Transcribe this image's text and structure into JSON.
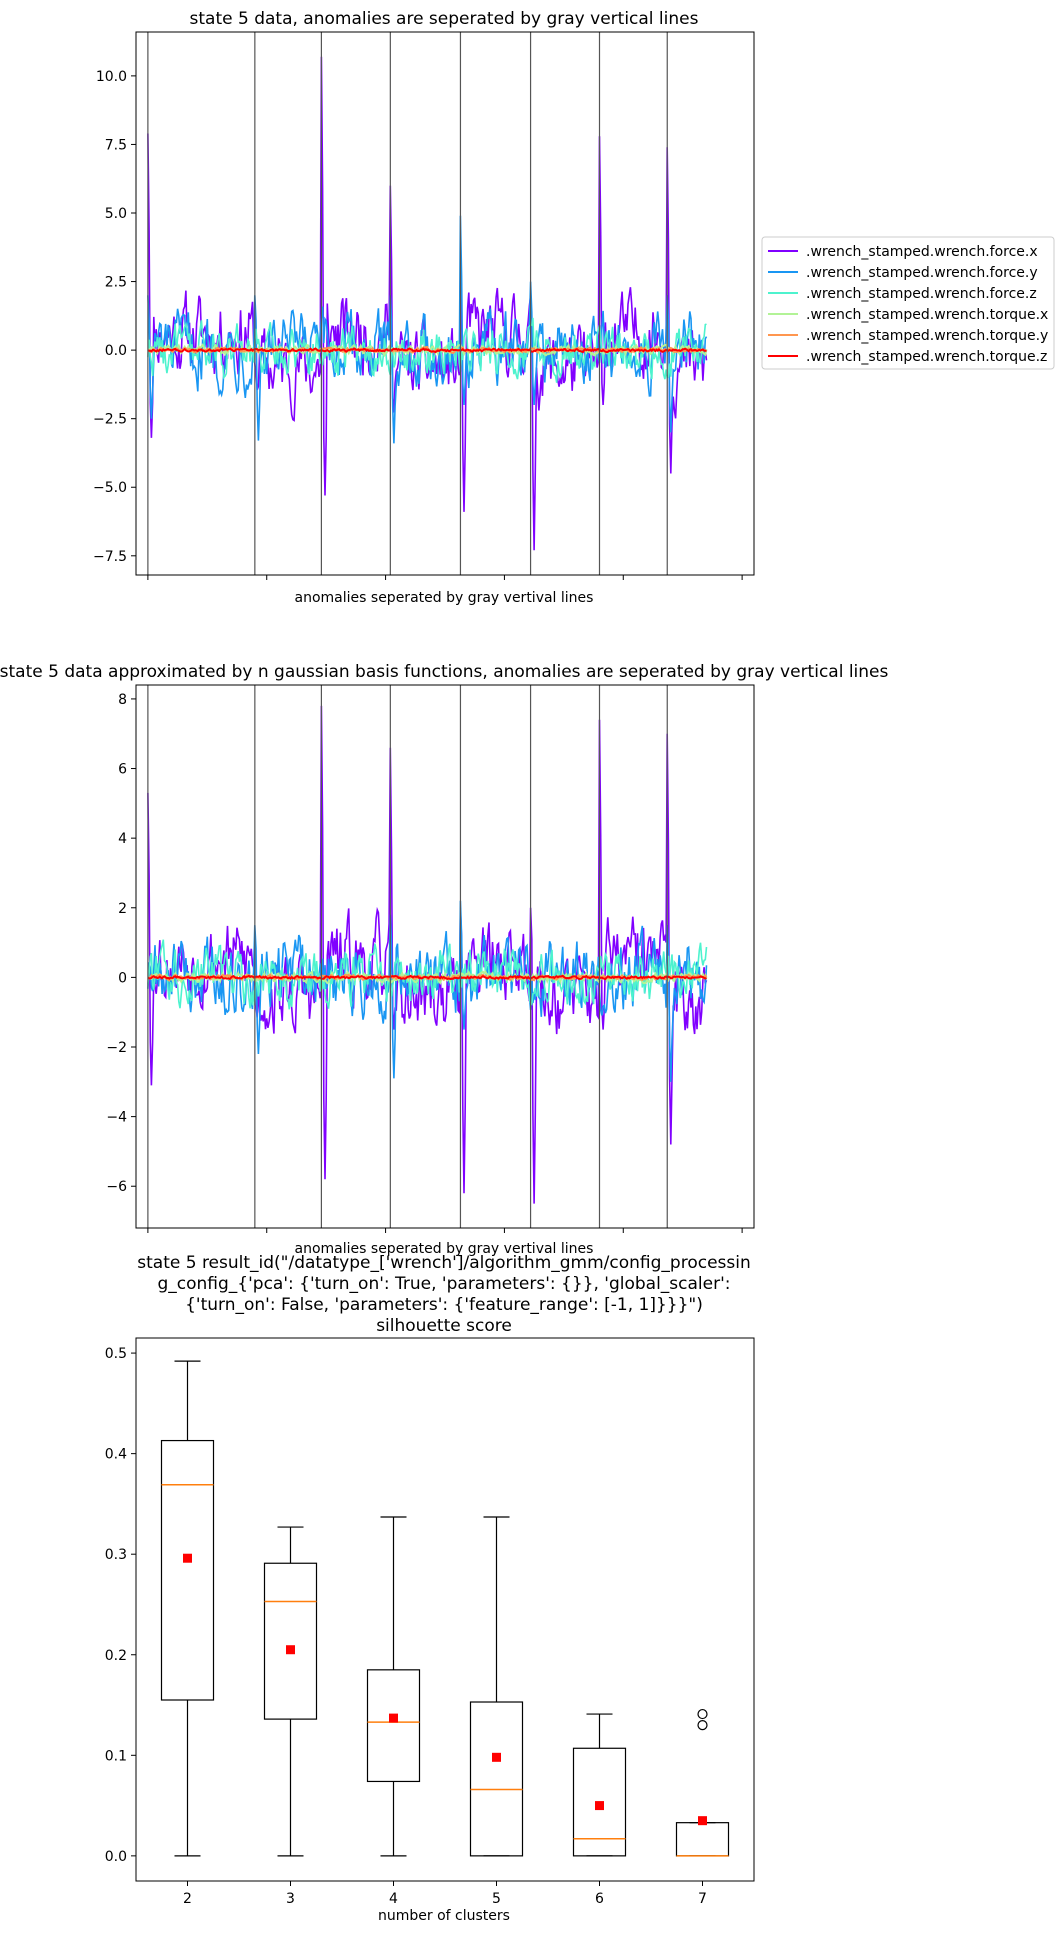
{
  "chart_data": [
    {
      "type": "line",
      "title": "state 5 data, anomalies are seperated by gray vertical lines",
      "xlabel": "anomalies seperated by gray vertival lines",
      "ylabel": "",
      "ylim": [
        -8.2,
        11.6
      ],
      "yticks": [
        "10.0",
        "7.5",
        "5.0",
        "2.5",
        "0.0",
        "−2.5",
        "−5.0",
        "−7.5"
      ],
      "ytick_values": [
        10.0,
        7.5,
        5.0,
        2.5,
        0.0,
        -2.5,
        -5.0,
        -7.5
      ],
      "x_range": [
        -10,
        510
      ],
      "xticks": [
        0,
        100,
        200,
        300,
        400,
        500
      ],
      "separators": [
        0,
        90,
        146,
        204,
        263,
        322,
        380,
        437
      ],
      "legend_position": "outside-right",
      "series": [
        {
          "name": ".wrench_stamped.wrench.force.x",
          "color": "#8000ff",
          "noise": 1.1,
          "offset": 0.6,
          "spikes": [
            {
              "pos": 0,
              "val": 7.9,
              "min": -3.2
            },
            {
              "pos": 146,
              "val": 10.7,
              "min": -5.3
            },
            {
              "pos": 204,
              "val": 6.0,
              "min": -2.0
            },
            {
              "pos": 263,
              "val": 3.0,
              "min": -5.9
            },
            {
              "pos": 322,
              "val": 2.0,
              "min": -7.3
            },
            {
              "pos": 380,
              "val": 7.8,
              "min": -2.0
            },
            {
              "pos": 437,
              "val": 7.4,
              "min": -4.5
            }
          ]
        },
        {
          "name": ".wrench_stamped.wrench.force.y",
          "color": "#1996f3",
          "noise": 1.0,
          "offset": 0.0,
          "spikes": [
            {
              "pos": 0,
              "val": 2.0,
              "min": -2.5
            },
            {
              "pos": 90,
              "val": 2.0,
              "min": -3.3
            },
            {
              "pos": 204,
              "val": 2.0,
              "min": -3.4
            },
            {
              "pos": 263,
              "val": 4.9,
              "min": -2.0
            },
            {
              "pos": 322,
              "val": 2.5,
              "min": -2.0
            },
            {
              "pos": 437,
              "val": 2.0,
              "min": -3.0
            }
          ]
        },
        {
          "name": ".wrench_stamped.wrench.force.z",
          "color": "#4df3ce",
          "noise": 0.7,
          "offset": 0.0,
          "spikes": []
        },
        {
          "name": ".wrench_stamped.wrench.torque.x",
          "color": "#b2f396",
          "noise": 0.12,
          "offset": 0.0,
          "spikes": []
        },
        {
          "name": ".wrench_stamped.wrench.torque.y",
          "color": "#ff964f",
          "noise": 0.06,
          "offset": 0.0,
          "spikes": []
        },
        {
          "name": ".wrench_stamped.wrench.torque.z",
          "color": "#ff0000",
          "noise": 0.04,
          "offset": 0.0,
          "spikes": []
        }
      ]
    },
    {
      "type": "line",
      "title": "state 5 data approximated by n gaussian basis functions, anomalies are seperated by gray vertical lines",
      "xlabel": "anomalies seperated by gray vertival lines",
      "ylabel": "",
      "ylim": [
        -7.2,
        8.4
      ],
      "yticks": [
        "8",
        "6",
        "4",
        "2",
        "0",
        "−2",
        "−4",
        "−6"
      ],
      "ytick_values": [
        8,
        6,
        4,
        2,
        0,
        -2,
        -4,
        -6
      ],
      "x_range": [
        -10,
        510
      ],
      "xticks": [
        0,
        100,
        200,
        300,
        400,
        500
      ],
      "separators": [
        0,
        90,
        146,
        204,
        263,
        322,
        380,
        437
      ],
      "series": [
        {
          "name": ".wrench_stamped.wrench.force.x",
          "color": "#8000ff",
          "noise": 0.9,
          "offset": 0.5,
          "spikes": [
            {
              "pos": 0,
              "val": 5.3,
              "min": -3.1
            },
            {
              "pos": 146,
              "val": 7.8,
              "min": -5.8
            },
            {
              "pos": 204,
              "val": 6.6,
              "min": -1.5
            },
            {
              "pos": 263,
              "val": 2.0,
              "min": -6.2
            },
            {
              "pos": 322,
              "val": 2.0,
              "min": -6.5
            },
            {
              "pos": 380,
              "val": 7.4,
              "min": -1.5
            },
            {
              "pos": 437,
              "val": 7.0,
              "min": -4.8
            }
          ]
        },
        {
          "name": ".wrench_stamped.wrench.force.y",
          "color": "#1996f3",
          "noise": 0.8,
          "offset": 0.0,
          "spikes": [
            {
              "pos": 90,
              "val": 1.5,
              "min": -2.2
            },
            {
              "pos": 204,
              "val": 1.8,
              "min": -2.9
            },
            {
              "pos": 263,
              "val": 2.2,
              "min": -1.5
            },
            {
              "pos": 437,
              "val": 1.5,
              "min": -3.0
            }
          ]
        },
        {
          "name": ".wrench_stamped.wrench.force.z",
          "color": "#4df3ce",
          "noise": 0.6,
          "offset": 0.0,
          "spikes": []
        },
        {
          "name": ".wrench_stamped.wrench.torque.x",
          "color": "#b2f396",
          "noise": 0.1,
          "offset": 0.0,
          "spikes": []
        },
        {
          "name": ".wrench_stamped.wrench.torque.y",
          "color": "#ff964f",
          "noise": 0.05,
          "offset": 0.0,
          "spikes": []
        },
        {
          "name": ".wrench_stamped.wrench.torque.z",
          "color": "#ff0000",
          "noise": 0.03,
          "offset": 0.0,
          "spikes": []
        }
      ]
    },
    {
      "type": "box",
      "title_lines": [
        "state 5 result_id(\"/datatype_['wrench']/algorithm_gmm/config_processin",
        "g_config_{'pca': {'turn_on': True, 'parameters': {}}, 'global_scaler':",
        "{'turn_on': False, 'parameters': {'feature_range': [-1, 1]}}}\")",
        "silhouette score"
      ],
      "xlabel": "number of clusters",
      "ylabel": "",
      "ylim": [
        -0.025,
        0.515
      ],
      "yticks": [
        "0.0",
        "0.1",
        "0.2",
        "0.3",
        "0.4",
        "0.5"
      ],
      "ytick_values": [
        0.0,
        0.1,
        0.2,
        0.3,
        0.4,
        0.5
      ],
      "categories": [
        "2",
        "3",
        "4",
        "5",
        "6",
        "7"
      ],
      "boxes": [
        {
          "whislo": 0.0,
          "q1": 0.155,
          "med": 0.369,
          "q3": 0.413,
          "whishi": 0.492,
          "mean": 0.296,
          "fliers": []
        },
        {
          "whislo": 0.0,
          "q1": 0.136,
          "med": 0.253,
          "q3": 0.291,
          "whishi": 0.327,
          "mean": 0.205,
          "fliers": []
        },
        {
          "whislo": 0.0,
          "q1": 0.074,
          "med": 0.133,
          "q3": 0.185,
          "whishi": 0.337,
          "mean": 0.137,
          "fliers": []
        },
        {
          "whislo": 0.0,
          "q1": 0.0,
          "med": 0.066,
          "q3": 0.153,
          "whishi": 0.337,
          "mean": 0.098,
          "fliers": []
        },
        {
          "whislo": 0.0,
          "q1": 0.0,
          "med": 0.017,
          "q3": 0.107,
          "whishi": 0.141,
          "mean": 0.05,
          "fliers": []
        },
        {
          "whislo": 0.0,
          "q1": 0.0,
          "med": 0.0,
          "q3": 0.033,
          "whishi": 0.033,
          "mean": 0.035,
          "fliers": [
            0.13,
            0.141
          ]
        }
      ],
      "colors": {
        "median": "#ff7f0e",
        "mean": "#ff0000"
      }
    }
  ]
}
